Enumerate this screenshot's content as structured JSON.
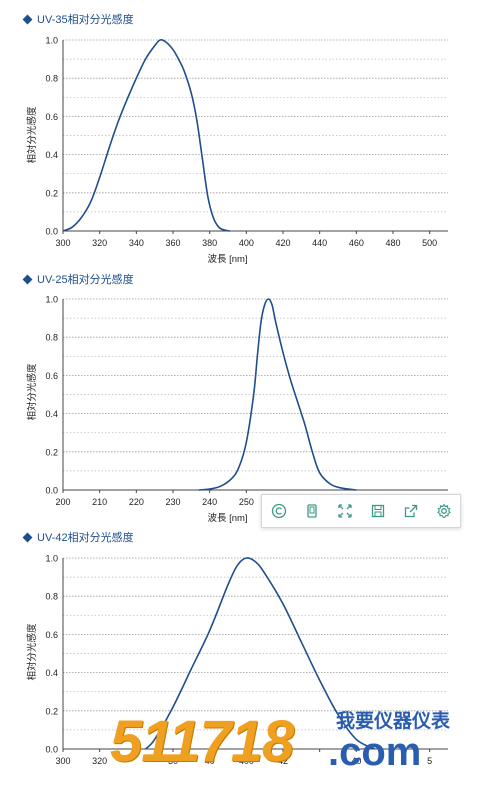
{
  "chart_data": [
    {
      "type": "line",
      "title": "UV-35相对分光感度",
      "xlabel": "波長 [nm]",
      "ylabel": "相対分光感度",
      "xlim": [
        300,
        510
      ],
      "ylim": [
        0,
        1.0
      ],
      "xticks": [
        "300",
        "320",
        "340",
        "360",
        "380",
        "400",
        "420",
        "440",
        "460",
        "480",
        "500"
      ],
      "yticks": [
        "0.0",
        "0.2",
        "0.4",
        "0.6",
        "0.8",
        "1.0"
      ],
      "grid": "horizontal-dotted",
      "series": [
        {
          "color": "#1f4e8c",
          "x": [
            300,
            305,
            310,
            315,
            320,
            325,
            330,
            335,
            340,
            345,
            350,
            353,
            356,
            360,
            363,
            366,
            370,
            373,
            376,
            379,
            382,
            385,
            388,
            391
          ],
          "y": [
            0.0,
            0.02,
            0.07,
            0.15,
            0.28,
            0.43,
            0.57,
            0.69,
            0.8,
            0.9,
            0.97,
            1.0,
            0.99,
            0.95,
            0.9,
            0.84,
            0.72,
            0.58,
            0.38,
            0.18,
            0.07,
            0.02,
            0.005,
            0.0
          ]
        }
      ]
    },
    {
      "type": "line",
      "title": "UV-25相对分光感度",
      "xlabel": "波長 [nm]",
      "ylabel": "相対分光感度",
      "xlim": [
        200,
        305
      ],
      "ylim": [
        0,
        1.0
      ],
      "xticks": [
        "200",
        "210",
        "220",
        "230",
        "240",
        "250"
      ],
      "yticks": [
        "0.0",
        "0.2",
        "0.4",
        "0.6",
        "0.8",
        "1.0"
      ],
      "grid": "horizontal-dotted",
      "series": [
        {
          "color": "#1f4e8c",
          "x": [
            237,
            240,
            243,
            246,
            248,
            250,
            252,
            253,
            254,
            255,
            256,
            257,
            258,
            260,
            262,
            264,
            266,
            268,
            270,
            273,
            276,
            280
          ],
          "y": [
            0.0,
            0.005,
            0.02,
            0.06,
            0.12,
            0.25,
            0.5,
            0.7,
            0.88,
            0.97,
            1.0,
            0.97,
            0.88,
            0.72,
            0.58,
            0.46,
            0.34,
            0.2,
            0.09,
            0.03,
            0.01,
            0.0
          ]
        }
      ]
    },
    {
      "type": "line",
      "title": "UV-42相对分光感度",
      "xlabel": "",
      "ylabel": "相対分光感度",
      "xlim": [
        300,
        510
      ],
      "ylim": [
        0,
        1.0
      ],
      "xticks": [
        "300",
        "320",
        "340",
        "360",
        "380",
        "400",
        "420",
        "440",
        "460",
        "480",
        "500"
      ],
      "yticks": [
        "0.0",
        "0.2",
        "0.4",
        "0.6",
        "0.8",
        "1.0"
      ],
      "xticks_visible": [
        "300",
        "320",
        "",
        "30",
        "40",
        "400",
        "42",
        "",
        "40",
        "",
        "5"
      ],
      "grid": "horizontal-dotted",
      "series": [
        {
          "color": "#1f4e8c",
          "x": [
            345,
            350,
            360,
            370,
            380,
            390,
            395,
            400,
            405,
            410,
            420,
            430,
            440,
            450,
            460,
            470
          ],
          "y": [
            0.0,
            0.05,
            0.22,
            0.42,
            0.62,
            0.86,
            0.96,
            1.0,
            0.98,
            0.92,
            0.76,
            0.56,
            0.36,
            0.18,
            0.05,
            0.0
          ]
        }
      ]
    }
  ],
  "toolbar": {
    "icons": [
      "data-view-icon",
      "copy-icon",
      "fullscreen-icon",
      "save-icon",
      "share-icon",
      "gear-icon"
    ]
  },
  "watermark": {
    "digits": "511718",
    "dotcom": ".com",
    "cn": "我要仪器仪表"
  },
  "colors": {
    "line": "#1f4e8c",
    "heading": "#1f4e8c",
    "watermark_orange": "#f0a020",
    "watermark_blue": "#2a5db0"
  }
}
